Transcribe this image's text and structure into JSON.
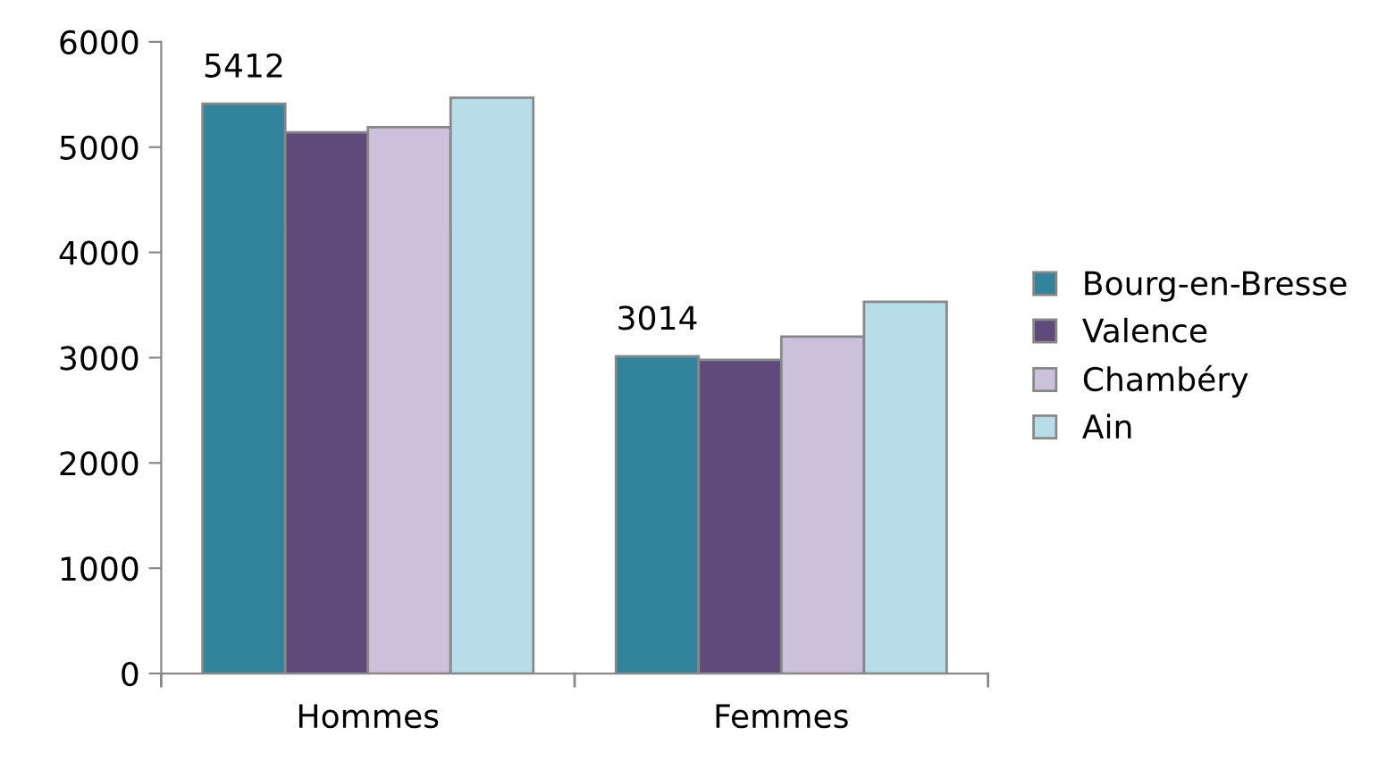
{
  "chart_data": {
    "type": "bar",
    "categories": [
      "Hommes",
      "Femmes"
    ],
    "series": [
      {
        "name": "Bourg-en-Bresse",
        "color": "#31849b",
        "values": [
          5412,
          3014
        ],
        "value_labels": [
          "5412",
          "3014"
        ]
      },
      {
        "name": "Valence",
        "color": "#604a7b",
        "values": [
          5140,
          2980
        ]
      },
      {
        "name": "Chambéry",
        "color": "#ccc1da",
        "values": [
          5190,
          3200
        ]
      },
      {
        "name": "Ain",
        "color": "#b7dde8",
        "values": [
          5470,
          3530
        ]
      }
    ],
    "ylim": [
      0,
      6000
    ],
    "yticks": [
      0,
      1000,
      2000,
      3000,
      4000,
      5000,
      6000
    ],
    "grid": false,
    "legend": "right"
  }
}
